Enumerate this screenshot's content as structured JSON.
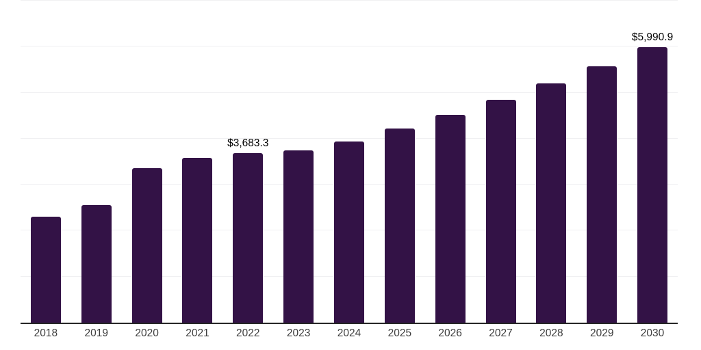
{
  "chart_data": {
    "type": "bar",
    "title": "",
    "xlabel": "",
    "ylabel": "",
    "categories": [
      "2018",
      "2019",
      "2020",
      "2021",
      "2022",
      "2023",
      "2024",
      "2025",
      "2026",
      "2027",
      "2028",
      "2029",
      "2030"
    ],
    "values": [
      2310,
      2560,
      3360,
      3580,
      3683.3,
      3745,
      3940,
      4220,
      4515,
      4840,
      5200,
      5570,
      5990.9
    ],
    "value_labels": {
      "2022": "$3,683.3",
      "2030": "$5,990.9"
    },
    "ylim": [
      0,
      7000
    ],
    "gridline_step": 1000,
    "grid": true,
    "legend": null,
    "colors": {
      "bar": "#331246",
      "axis_line": "#262626",
      "gridline": "#f0f0f2",
      "tick_label": "#3d3d3d",
      "value_label": "#000000",
      "background": "#ffffff"
    }
  }
}
